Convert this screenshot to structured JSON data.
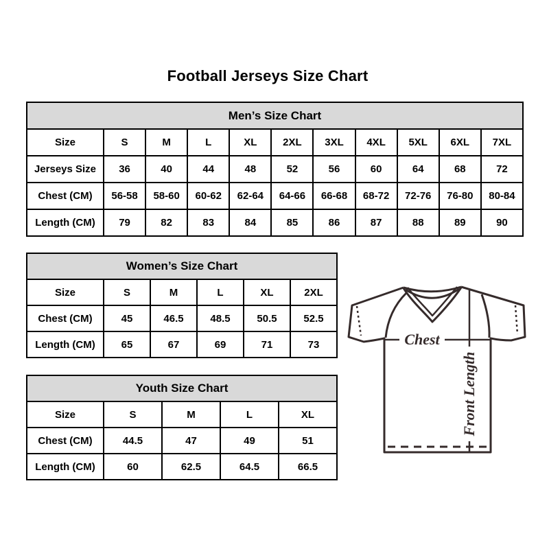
{
  "page": {
    "title": "Football Jerseys Size Chart"
  },
  "tables": [
    {
      "id": "mens",
      "title": "Men’s Size Chart",
      "rows": [
        [
          "Size",
          "S",
          "M",
          "L",
          "XL",
          "2XL",
          "3XL",
          "4XL",
          "5XL",
          "6XL",
          "7XL"
        ],
        [
          "Jerseys Size",
          "36",
          "40",
          "44",
          "48",
          "52",
          "56",
          "60",
          "64",
          "68",
          "72"
        ],
        [
          "Chest (CM)",
          "56-58",
          "58-60",
          "60-62",
          "62-64",
          "64-66",
          "66-68",
          "68-72",
          "72-76",
          "76-80",
          "80-84"
        ],
        [
          "Length (CM)",
          "79",
          "82",
          "83",
          "84",
          "85",
          "86",
          "87",
          "88",
          "89",
          "90"
        ]
      ]
    },
    {
      "id": "womens",
      "title": "Women’s Size Chart",
      "rows": [
        [
          "Size",
          "S",
          "M",
          "L",
          "XL",
          "2XL"
        ],
        [
          "Chest (CM)",
          "45",
          "46.5",
          "48.5",
          "50.5",
          "52.5"
        ],
        [
          "Length (CM)",
          "65",
          "67",
          "69",
          "71",
          "73"
        ]
      ]
    },
    {
      "id": "youth",
      "title": "Youth Size Chart",
      "rows": [
        [
          "Size",
          "S",
          "M",
          "L",
          "XL"
        ],
        [
          "Chest (CM)",
          "44.5",
          "47",
          "49",
          "51"
        ],
        [
          "Length (CM)",
          "60",
          "62.5",
          "64.5",
          "66.5"
        ]
      ]
    }
  ],
  "diagram": {
    "chest_label": "Chest",
    "front_length_label": "Front Length",
    "line_color": "#352b2b"
  },
  "colors": {
    "background": "#ffffff",
    "table_header_bg": "#d9d9d9",
    "border": "#000000",
    "text": "#000000"
  }
}
